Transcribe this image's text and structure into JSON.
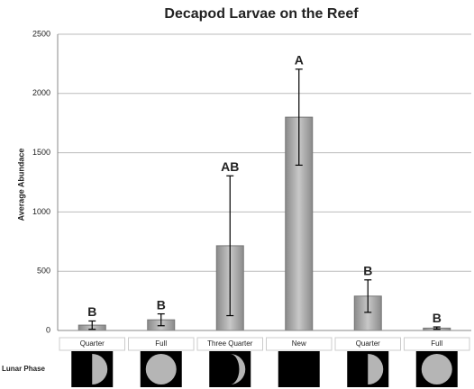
{
  "chart_data": {
    "type": "bar",
    "title": "Decapod Larvae on the Reef",
    "y_label": "Average Abundace",
    "x_label": "Lunar Phase",
    "categories": [
      "Quarter",
      "Full",
      "Three Quarter",
      "New",
      "Quarter",
      "Full"
    ],
    "values": [
      45,
      90,
      715,
      1800,
      290,
      20
    ],
    "errors": [
      35,
      50,
      590,
      405,
      137,
      10
    ],
    "group_labels": [
      "B",
      "B",
      "AB",
      "A",
      "B",
      "B"
    ],
    "moon_phases": [
      "quarter",
      "full",
      "three-quarter",
      "new",
      "quarter",
      "full"
    ],
    "color": "#a8a8a8",
    "ylim": [
      0,
      2500
    ],
    "yticks": [
      0,
      500,
      1000,
      1500,
      2000,
      2500
    ],
    "grid": true
  }
}
